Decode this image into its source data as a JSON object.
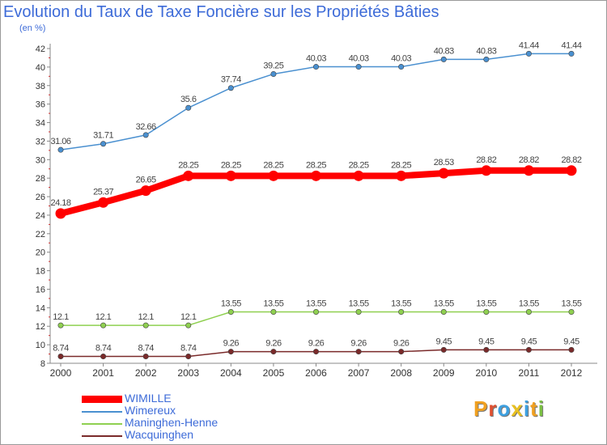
{
  "title": "Evolution du Taux de Taxe Foncière sur les Propriétés Bâties",
  "subtitle": "(en %)",
  "logo": {
    "text": "Proxiti",
    "letter_colors": [
      "#f0a020",
      "#e05030",
      "#3da0e0",
      "#e8c020",
      "#3da0e0",
      "#f0a020",
      "#7bc043"
    ]
  },
  "chart_data": {
    "type": "line",
    "x": [
      "2000",
      "2001",
      "2002",
      "2003",
      "2004",
      "2005",
      "2006",
      "2007",
      "2008",
      "2009",
      "2010",
      "2011",
      "2012"
    ],
    "ylim": [
      8,
      42
    ],
    "yticks": [
      "8",
      "10",
      "12",
      "14",
      "16",
      "18",
      "20",
      "22",
      "24",
      "26",
      "28",
      "30",
      "32",
      "34",
      "36",
      "38",
      "40",
      "42"
    ],
    "grid": false,
    "legend_position": "bottom-left",
    "series": [
      {
        "name": "WIMILLE",
        "color": "#ff0000",
        "emphasis": true,
        "values": [
          24.18,
          25.37,
          26.65,
          28.25,
          28.25,
          28.25,
          28.25,
          28.25,
          28.25,
          28.53,
          28.82,
          28.82,
          28.82
        ],
        "labels": [
          "24.18",
          "25.37",
          "26.65",
          "28.25",
          "28.25",
          "28.25",
          "28.25",
          "28.25",
          "28.25",
          "28.53",
          "28.82",
          "28.82",
          "28.82"
        ]
      },
      {
        "name": "Wimereux",
        "color": "#4a90d0",
        "values": [
          31.06,
          31.71,
          32.66,
          35.6,
          37.74,
          39.25,
          40.03,
          40.03,
          40.03,
          40.83,
          40.83,
          41.44,
          41.44
        ],
        "labels": [
          "31.06",
          "31.71",
          "32.66",
          "35.6",
          "37.74",
          "39.25",
          "40.03",
          "40.03",
          "40.03",
          "40.83",
          "40.83",
          "41.44",
          "41.44"
        ]
      },
      {
        "name": "Maninghen-Henne",
        "color": "#8fd050",
        "values": [
          12.1,
          12.1,
          12.1,
          12.1,
          13.55,
          13.55,
          13.55,
          13.55,
          13.55,
          13.55,
          13.55,
          13.55,
          13.55
        ],
        "labels": [
          "12.1",
          "12.1",
          "12.1",
          "12.1",
          "13.55",
          "13.55",
          "13.55",
          "13.55",
          "13.55",
          "13.55",
          "13.55",
          "13.55",
          "13.55"
        ]
      },
      {
        "name": "Wacquinghen",
        "color": "#7a2a2a",
        "values": [
          8.74,
          8.74,
          8.74,
          8.74,
          9.26,
          9.26,
          9.26,
          9.26,
          9.26,
          9.45,
          9.45,
          9.45,
          9.45
        ],
        "labels": [
          "8.74",
          "8.74",
          "8.74",
          "8.74",
          "9.26",
          "9.26",
          "9.26",
          "9.26",
          "9.26",
          "9.45",
          "9.45",
          "9.45",
          "9.45"
        ]
      }
    ]
  }
}
